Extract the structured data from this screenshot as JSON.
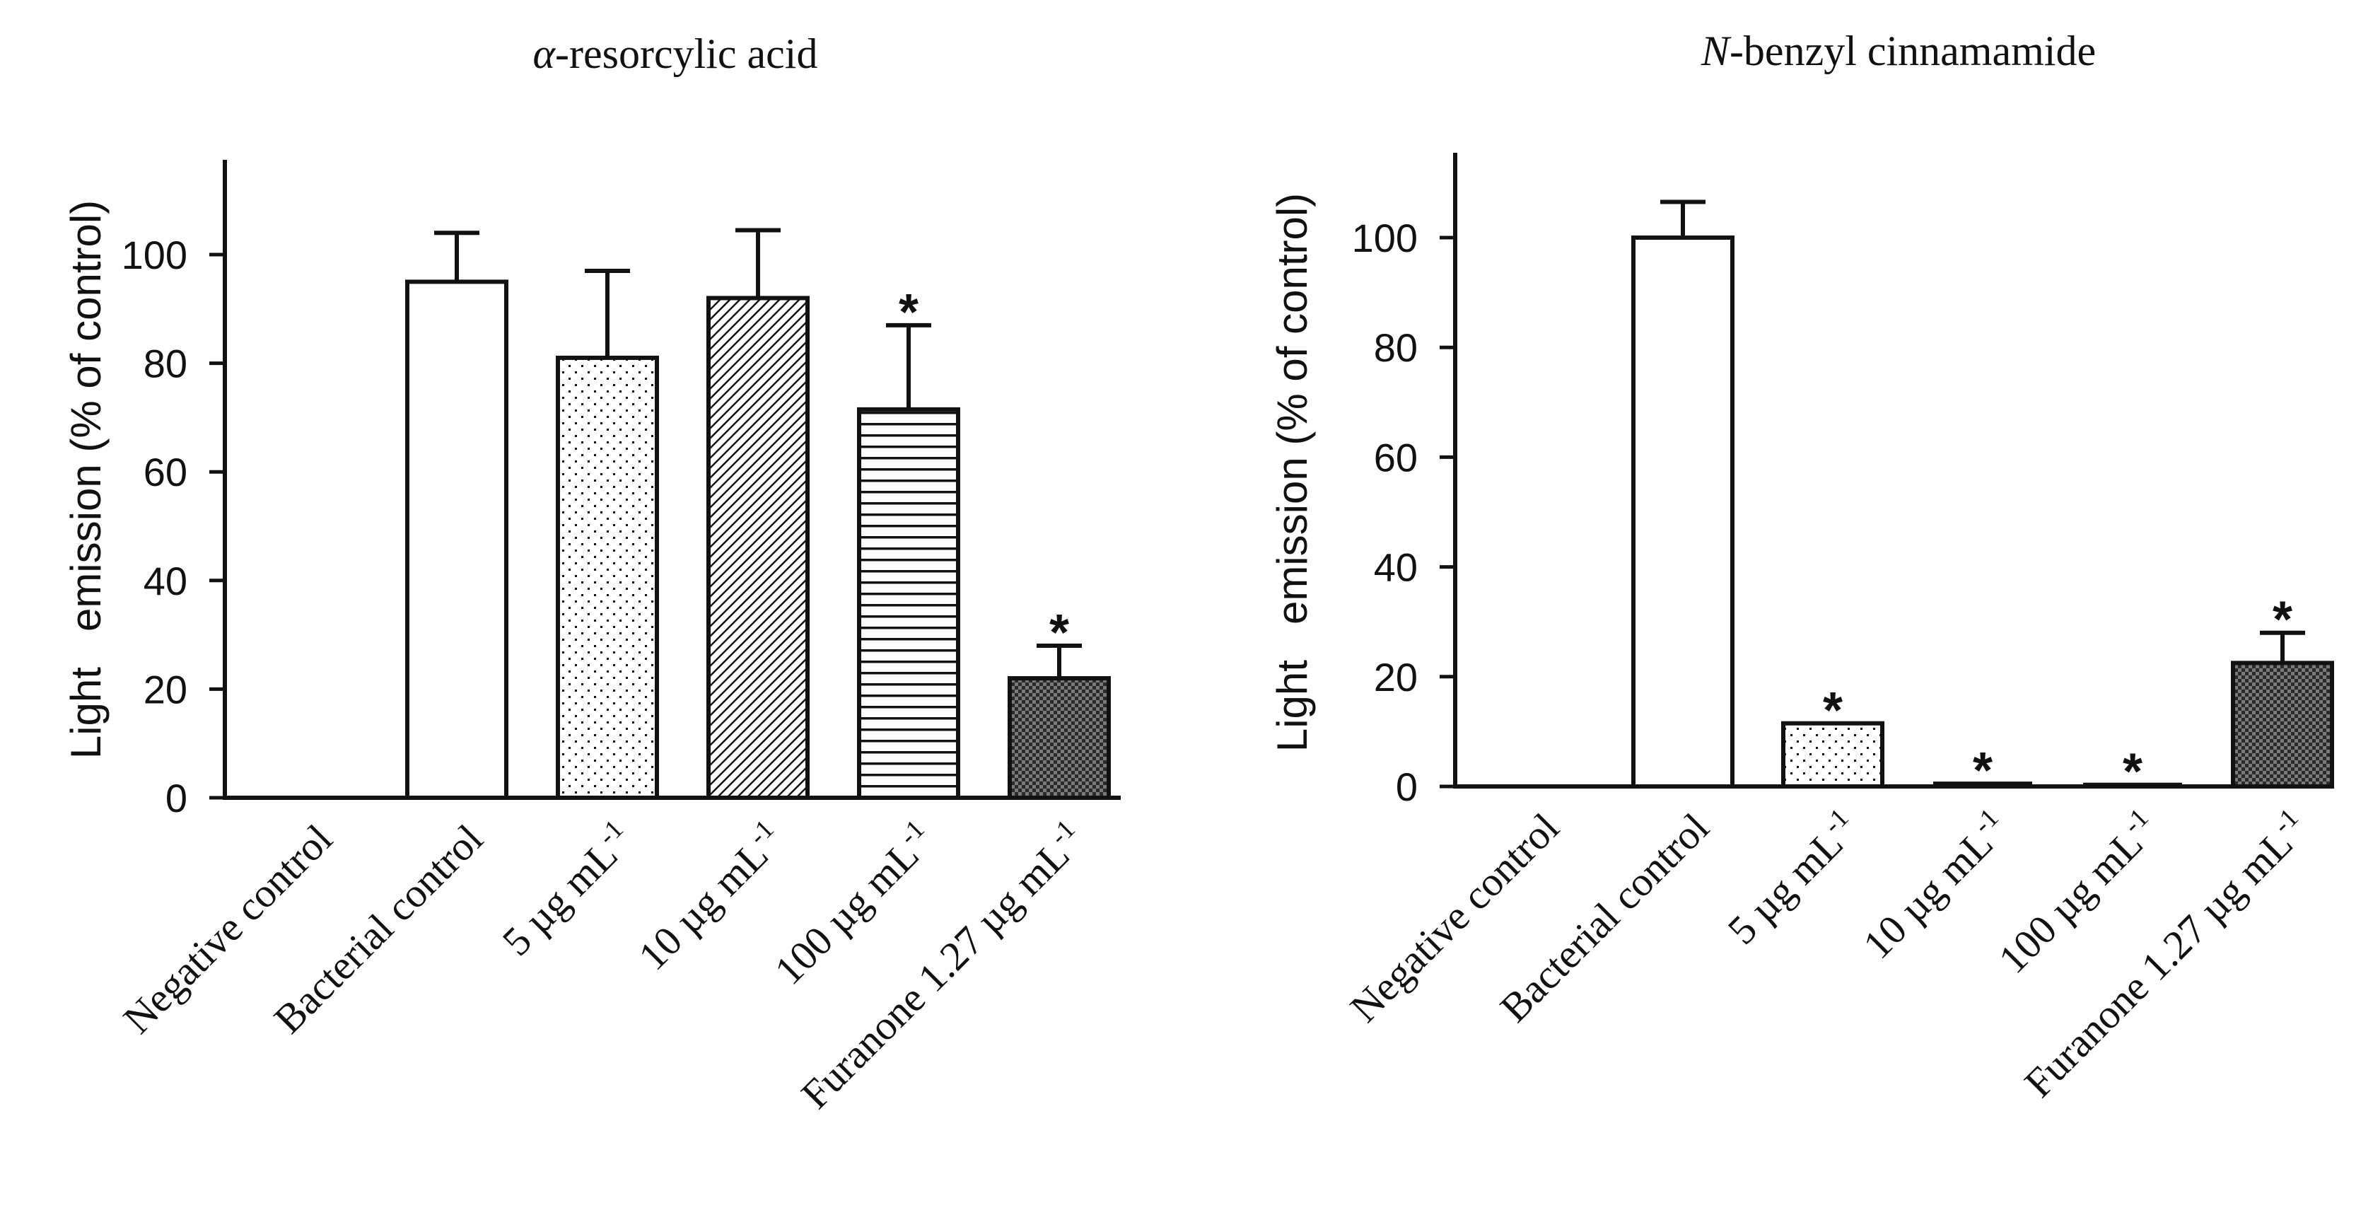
{
  "chart_data": [
    {
      "type": "bar",
      "title_prefix": "α",
      "title_rest": "-resorcylic acid",
      "xlabel": "",
      "ylabel": "Light   emission (% of control)",
      "ylim": [
        0,
        115
      ],
      "yticks": [
        0,
        20,
        40,
        60,
        80,
        100
      ],
      "ytick_labels": [
        "0",
        "20",
        "40",
        "60",
        "80",
        "100"
      ],
      "categories": [
        {
          "label": "Negative control",
          "sup": ""
        },
        {
          "label": "Bacterial control",
          "sup": ""
        },
        {
          "label": "5 µg mL",
          "sup": "-1"
        },
        {
          "label": "10 µg mL",
          "sup": "-1"
        },
        {
          "label": "100 µg mL",
          "sup": "-1"
        },
        {
          "label": "Furanone 1.27 µg mL",
          "sup": "-1"
        }
      ],
      "values": [
        0,
        95,
        81,
        92,
        71.5,
        22
      ],
      "errors": [
        0,
        9,
        16,
        12.5,
        15.5,
        6
      ],
      "patterns": [
        "none",
        "white",
        "dots",
        "diagonal",
        "horizontal",
        "checker"
      ],
      "significance": [
        "",
        "",
        "",
        "",
        "*",
        "*"
      ]
    },
    {
      "type": "bar",
      "title_prefix": "N",
      "title_rest": "-benzyl cinnamamide",
      "xlabel": "",
      "ylabel": "Light   emission (% of control)",
      "ylim": [
        0,
        115
      ],
      "yticks": [
        0,
        20,
        40,
        60,
        80,
        100
      ],
      "ytick_labels": [
        "0",
        "20",
        "40",
        "60",
        "80",
        "100"
      ],
      "categories": [
        {
          "label": "Negative control",
          "sup": ""
        },
        {
          "label": "Bacterial control",
          "sup": ""
        },
        {
          "label": "5 µg mL",
          "sup": "-1"
        },
        {
          "label": "10 µg mL",
          "sup": "-1"
        },
        {
          "label": "100 µg mL",
          "sup": "-1"
        },
        {
          "label": "Furanone 1.27 µg mL",
          "sup": "-1"
        }
      ],
      "values": [
        0,
        100,
        11.5,
        0.5,
        0.3,
        22.5
      ],
      "errors": [
        0,
        6.5,
        0,
        0,
        0,
        5.5
      ],
      "patterns": [
        "none",
        "white",
        "dots",
        "none",
        "none",
        "checker"
      ],
      "significance": [
        "",
        "",
        "*",
        "*",
        "*",
        "*"
      ]
    }
  ]
}
